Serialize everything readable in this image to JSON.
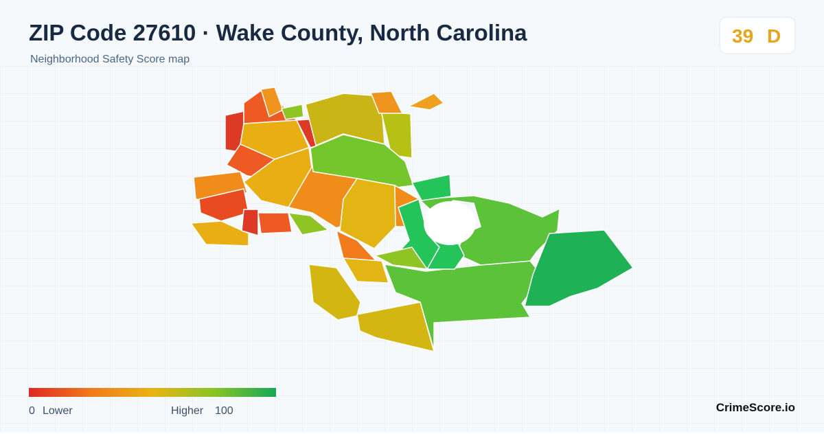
{
  "header": {
    "title": "ZIP Code 27610 · Wake County, North Carolina",
    "subtitle": "Neighborhood Safety Score map"
  },
  "score": {
    "value": 39,
    "grade": "D"
  },
  "legend": {
    "min": 0,
    "min_label": "Lower",
    "max_label": "Higher",
    "max": 100
  },
  "brand": "CrimeScore.io"
}
